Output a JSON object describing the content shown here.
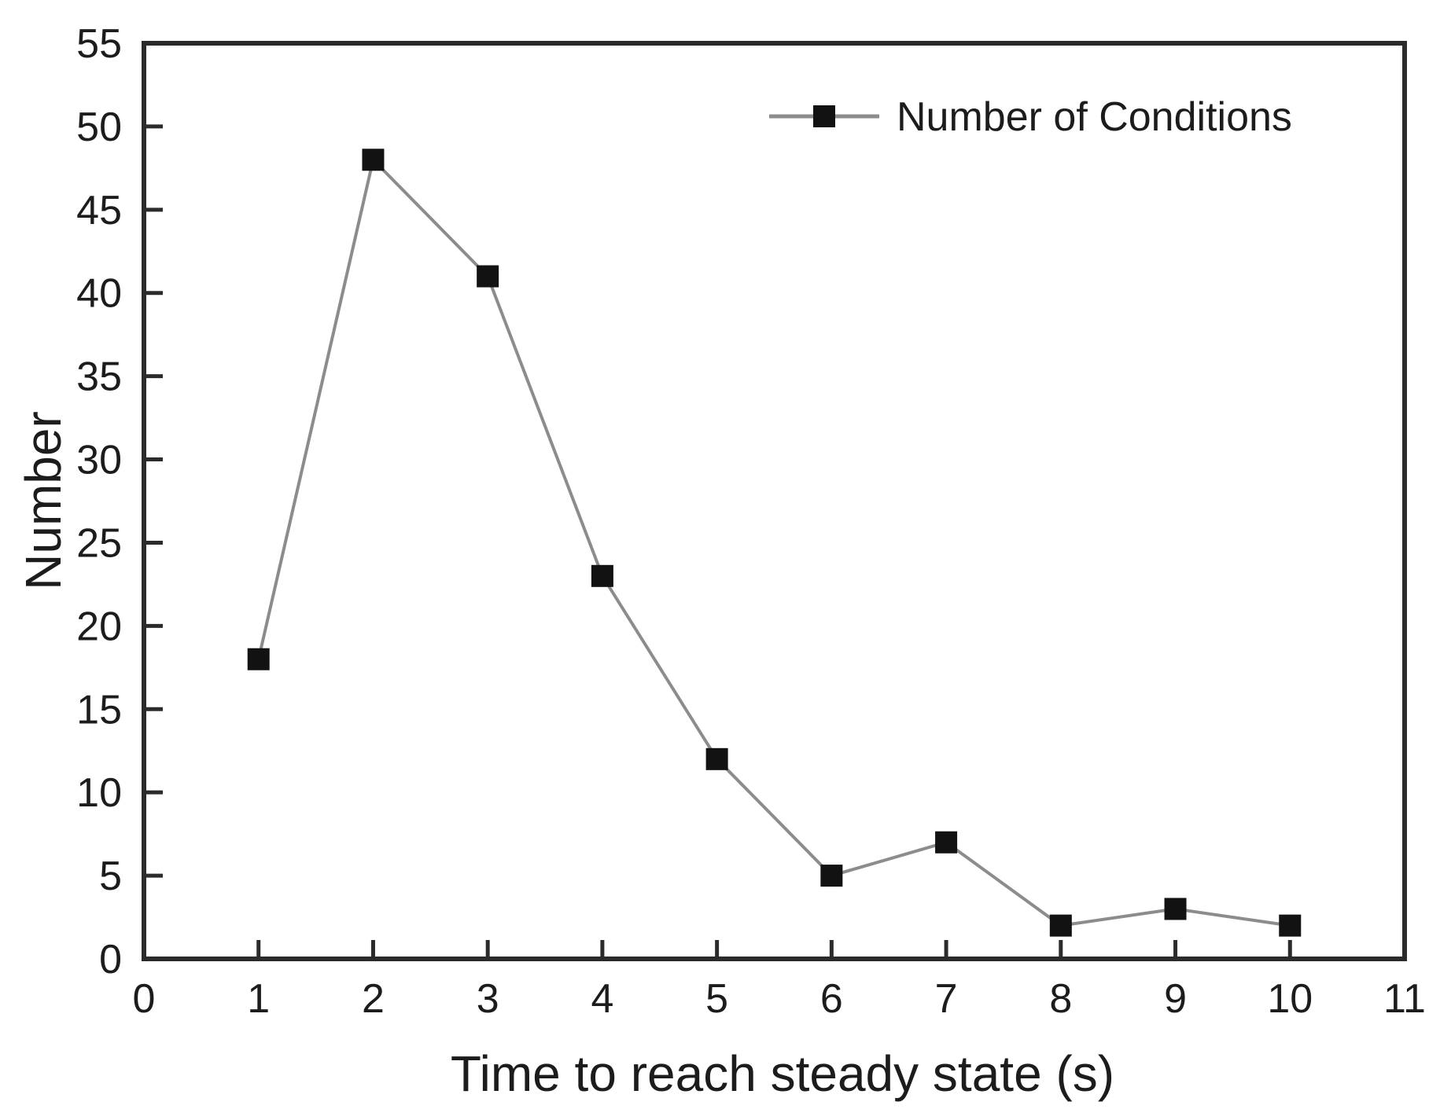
{
  "chart_data": {
    "type": "line",
    "title": "",
    "xlabel": "Time to reach steady state (s)",
    "ylabel": "Number",
    "xlim": [
      0,
      11
    ],
    "ylim": [
      0,
      55
    ],
    "xticks": [
      0,
      1,
      2,
      3,
      4,
      5,
      6,
      7,
      8,
      9,
      10,
      11
    ],
    "yticks": [
      0,
      5,
      10,
      15,
      20,
      25,
      30,
      35,
      40,
      45,
      50,
      55
    ],
    "grid": false,
    "legend": {
      "position": "top-right-inside",
      "entries": [
        "Number of Conditions"
      ]
    },
    "series": [
      {
        "name": "Number of Conditions",
        "x": [
          1,
          2,
          3,
          4,
          5,
          6,
          7,
          8,
          9,
          10
        ],
        "y": [
          18,
          48,
          41,
          23,
          12,
          5,
          7,
          2,
          3,
          2
        ],
        "marker": "square",
        "marker_color": "#121212",
        "line_color": "#8c8c8c"
      }
    ],
    "colors": {
      "axis": "#2b2b2b",
      "text": "#1c1c1c",
      "background": "#ffffff"
    }
  }
}
